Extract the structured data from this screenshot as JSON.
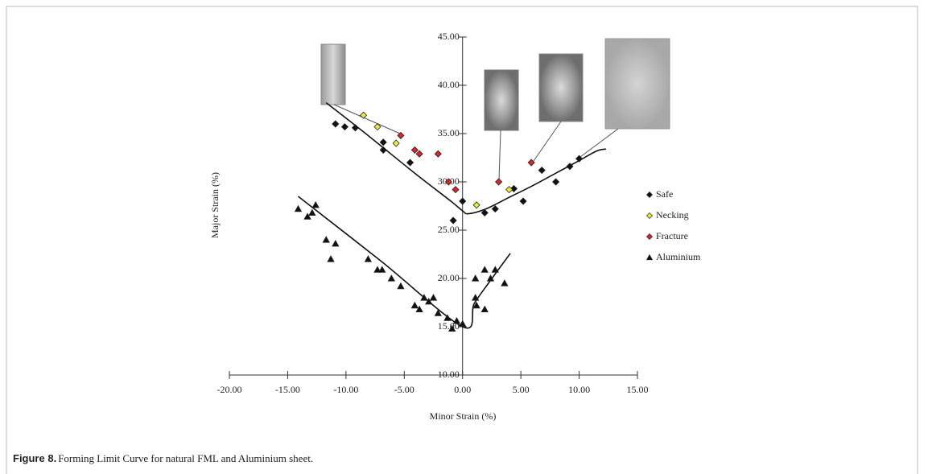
{
  "chart_data": {
    "type": "scatter",
    "caption_label": "Figure 8.",
    "caption": "Forming Limit Curve for natural FML and Aluminium sheet.",
    "x_label": "Minor Strain (%)",
    "y_label": "Major Strain (%)",
    "xlim": [
      -20,
      15
    ],
    "ylim": [
      10,
      45
    ],
    "xticks": [
      {
        "value": -20,
        "label": "-20.00"
      },
      {
        "value": -15,
        "label": "-15.00"
      },
      {
        "value": -10,
        "label": "-10.00"
      },
      {
        "value": -5,
        "label": "-5.00"
      },
      {
        "value": 0,
        "label": "0.00"
      },
      {
        "value": 5,
        "label": "5.00"
      },
      {
        "value": 10,
        "label": "10.00"
      },
      {
        "value": 15,
        "label": "15.00"
      }
    ],
    "yticks": [
      {
        "value": 10,
        "label": "10.00"
      },
      {
        "value": 15,
        "label": "15.00"
      },
      {
        "value": 20,
        "label": "20.00"
      },
      {
        "value": 25,
        "label": "25.00"
      },
      {
        "value": 30,
        "label": "30.00"
      },
      {
        "value": 35,
        "label": "35.00"
      },
      {
        "value": 40,
        "label": "40.00"
      },
      {
        "value": 45,
        "label": "45.00"
      }
    ],
    "legend": "right",
    "series": [
      {
        "name": "Safe",
        "color": "#111111",
        "marker": "diamond",
        "x": [
          -10.9,
          -10.1,
          -9.2,
          -6.8,
          -6.8,
          -4.5,
          0,
          -0.8,
          1.9,
          2.8,
          4.4,
          5.2,
          6.8,
          8.0,
          9.2,
          10.0
        ],
        "values": [
          36.0,
          35.7,
          35.6,
          34.1,
          33.3,
          32.0,
          28.0,
          26.0,
          26.8,
          27.2,
          29.3,
          28.0,
          31.2,
          30.0,
          31.6,
          32.4
        ]
      },
      {
        "name": "Necking",
        "color": "#e8e84a",
        "marker": "diamond",
        "x": [
          -8.5,
          -7.3,
          -5.7,
          1.2,
          4.0
        ],
        "values": [
          36.9,
          35.7,
          34.0,
          27.6,
          29.2
        ]
      },
      {
        "name": "Fracture",
        "color": "#d0282c",
        "marker": "diamond",
        "x": [
          -5.3,
          -4.1,
          -3.7,
          -2.1,
          -1.2,
          -0.6,
          3.1,
          5.9
        ],
        "values": [
          34.8,
          33.3,
          32.9,
          32.9,
          30.0,
          29.2,
          30.0,
          32.0
        ]
      },
      {
        "name": "Aluminium",
        "color": "#111111",
        "marker": "triangle",
        "x": [
          -14.1,
          -13.3,
          -12.9,
          -12.6,
          -11.7,
          -11.3,
          -10.9,
          -8.1,
          -7.3,
          -6.9,
          -6.1,
          -5.3,
          -4.1,
          -3.7,
          -3.3,
          -2.9,
          -2.5,
          -2.1,
          -1.3,
          -0.9,
          -0.5,
          0,
          1.1,
          1.1,
          1.2,
          1.9,
          1.9,
          2.4,
          2.8,
          3.6
        ],
        "values": [
          27.2,
          26.4,
          26.8,
          27.6,
          24.0,
          22.0,
          23.6,
          22.0,
          20.9,
          20.9,
          20.0,
          19.2,
          17.2,
          16.8,
          18.0,
          17.6,
          18.0,
          16.4,
          15.9,
          14.8,
          15.6,
          15.3,
          20.0,
          18.0,
          17.2,
          16.8,
          20.9,
          20.0,
          20.9,
          19.5
        ]
      }
    ],
    "fit_curves": [
      {
        "color": "#111111",
        "x": [
          -11.7,
          -8,
          -4,
          -1,
          0,
          0.5,
          2,
          4,
          6,
          8,
          10,
          11.5,
          12.3
        ],
        "values": [
          38.2,
          34.7,
          30.8,
          28.0,
          27.0,
          26.7,
          27.2,
          28.4,
          29.6,
          30.9,
          32.2,
          33.2,
          33.4
        ]
      },
      {
        "color": "#111111",
        "x": [
          -14.1,
          -7,
          0,
          1,
          2.4,
          4.1
        ],
        "values": [
          28.5,
          21.8,
          15.0,
          17.4,
          19.8,
          22.6
        ]
      }
    ]
  }
}
